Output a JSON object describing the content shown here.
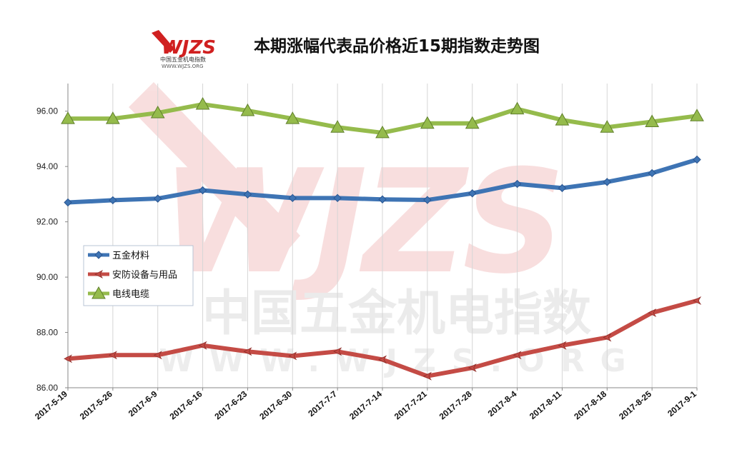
{
  "chart_data": {
    "type": "line",
    "title": "本期涨幅代表品价格近15期指数走势图",
    "categories": [
      "2017-5-19",
      "2017-5-26",
      "2017-6-9",
      "2017-6-16",
      "2017-6-23",
      "2017-6-30",
      "2017-7-7",
      "2017-7-14",
      "2017-7-21",
      "2017-7-28",
      "2017-8-4",
      "2017-8-11",
      "2017-8-18",
      "2017-8-25",
      "2017-9-1"
    ],
    "ylim": [
      86,
      97
    ],
    "yticks": [
      "86.00",
      "88.00",
      "90.00",
      "92.00",
      "94.00",
      "96.00"
    ],
    "grid": "vertical",
    "legend_position": "left-middle",
    "series": [
      {
        "name": "五金材料",
        "color": "#3e74b4",
        "marker": "diamond",
        "values": [
          92.7,
          92.78,
          92.84,
          93.14,
          92.99,
          92.86,
          92.86,
          92.81,
          92.79,
          93.03,
          93.37,
          93.22,
          93.44,
          93.76,
          94.25
        ]
      },
      {
        "name": "安防设备与用品",
        "color": "#c44b45",
        "marker": "arrow",
        "values": [
          87.05,
          87.18,
          87.18,
          87.53,
          87.31,
          87.15,
          87.31,
          87.02,
          86.42,
          86.72,
          87.18,
          87.53,
          87.82,
          88.71,
          89.15
        ]
      },
      {
        "name": "电线电缆",
        "color": "#95bb4c",
        "marker": "triangle",
        "values": [
          95.73,
          95.73,
          95.94,
          96.25,
          96.02,
          95.73,
          95.42,
          95.22,
          95.56,
          95.56,
          96.08,
          95.68,
          95.42,
          95.62,
          95.83
        ]
      }
    ]
  },
  "watermark": {
    "logo": "WJZS",
    "name": "中国五金机电指数",
    "url": "WWW.WJZS.ORG"
  }
}
